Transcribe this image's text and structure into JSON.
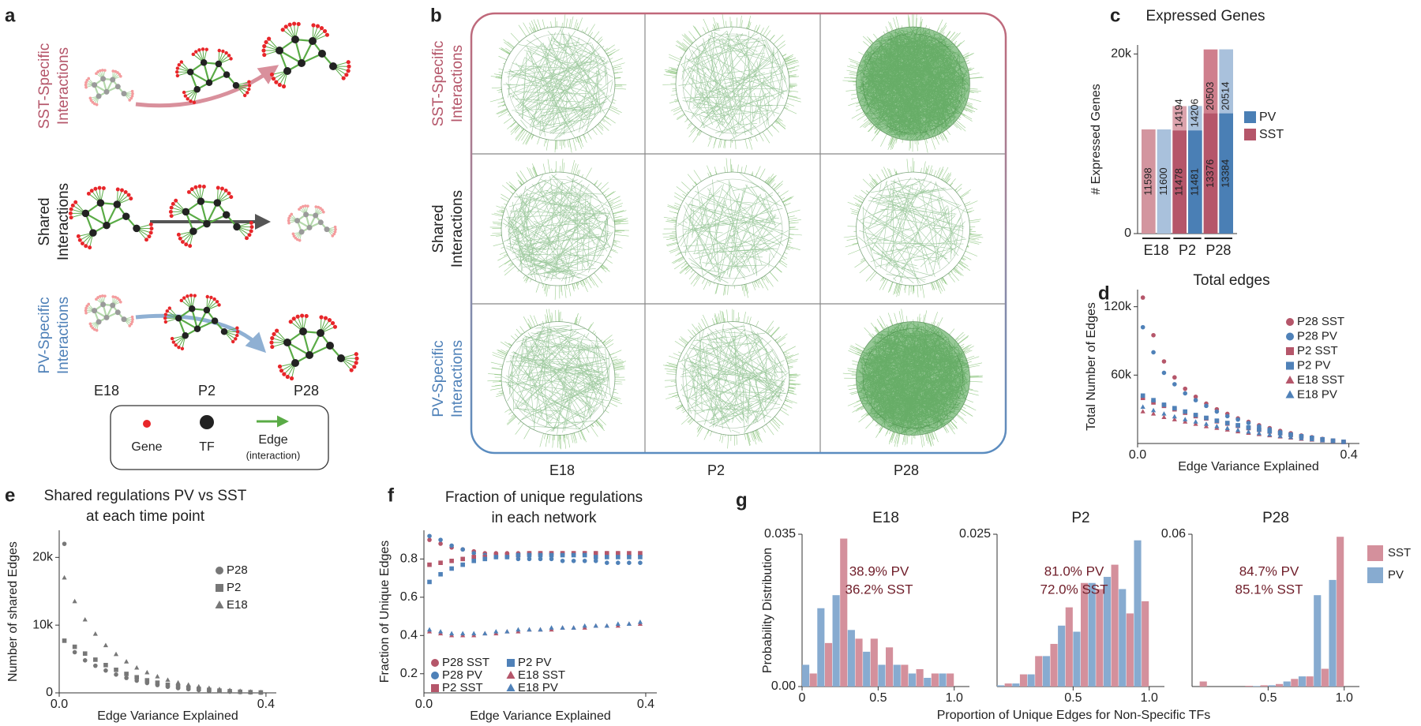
{
  "panels": {
    "a": {
      "letter": "a",
      "rows": [
        [
          "SST-Specific",
          "Interactions"
        ],
        [
          "Shared",
          "Interactions"
        ],
        [
          "PV-Specific",
          "Interactions"
        ]
      ],
      "timepoints": [
        "E18",
        "P2",
        "P28"
      ],
      "legend": {
        "gene": "Gene",
        "tf": "TF",
        "edge": "Edge",
        "edge_note": "(interaction)"
      }
    },
    "b": {
      "letter": "b",
      "rows": [
        [
          "SST-Specific",
          "Interactions"
        ],
        [
          "Shared",
          "Interactions"
        ],
        [
          "PV-Specific",
          "Interactions"
        ]
      ],
      "columns": [
        "E18",
        "P2",
        "P28"
      ]
    },
    "g": {
      "letter": "g",
      "xlabel": "Proportion of Unique Edges for Non-Specific TFs"
    }
  },
  "chart_data": [
    {
      "type": "bar",
      "letter": "c",
      "title": "Expressed Genes",
      "ylabel": "# Expressed Genes",
      "groups": [
        "E18",
        "P2",
        "P28"
      ],
      "series": [
        {
          "values": [
            11598,
            11600,
            14194,
            14206,
            20503,
            20514
          ],
          "colors": [
            "#d3959f",
            "#a9c1dc",
            "#dca3ad",
            "#a9c1dc",
            "#cf7f8d",
            "#a9c1dc"
          ]
        },
        {
          "values": [
            null,
            null,
            11478,
            11481,
            13376,
            13384
          ],
          "colors": [
            "#b5566a",
            "#4a7fb5",
            "#b5566a",
            "#4a7fb5",
            "#b5566a",
            "#4a7fb5"
          ]
        }
      ],
      "legend": [
        {
          "name": "PV",
          "color": "#4a7fb5"
        },
        {
          "name": "SST",
          "color": "#b5566a"
        }
      ],
      "ylim": [
        0,
        21000
      ],
      "yticks": [
        0,
        {
          "value": 20000,
          "label": "20k"
        }
      ]
    },
    {
      "type": "scatter",
      "letter": "d",
      "title": "Total edges",
      "xlabel": "Edge Variance Explained",
      "ylabel": "Total Number of Edges",
      "x": [
        0.01,
        0.03,
        0.05,
        0.07,
        0.09,
        0.11,
        0.13,
        0.15,
        0.17,
        0.19,
        0.21,
        0.23,
        0.25,
        0.27,
        0.29,
        0.31,
        0.33,
        0.35,
        0.37,
        0.39
      ],
      "series": [
        {
          "name": "P28 SST",
          "color": "#b5566a",
          "marker": "circle",
          "values": [
            128000,
            95000,
            72000,
            58000,
            48000,
            41000,
            35000,
            30000,
            26000,
            22000,
            19000,
            16000,
            13500,
            11000,
            9000,
            7000,
            5500,
            4000,
            2500,
            1500
          ]
        },
        {
          "name": "P28 PV",
          "color": "#4f81b8",
          "marker": "circle",
          "values": [
            102000,
            80000,
            62000,
            52000,
            44000,
            38000,
            33000,
            28000,
            24000,
            21000,
            18000,
            15000,
            12500,
            10000,
            8000,
            6500,
            5000,
            3500,
            2300,
            1300
          ]
        },
        {
          "name": "P2 SST",
          "color": "#b5566a",
          "marker": "square",
          "values": [
            40000,
            36000,
            33000,
            30000,
            27000,
            24000,
            22000,
            19500,
            17500,
            15500,
            13500,
            12000,
            10500,
            9000,
            7500,
            6000,
            4800,
            3600,
            2400,
            1400
          ]
        },
        {
          "name": "P2 PV",
          "color": "#4f81b8",
          "marker": "square",
          "values": [
            42000,
            38000,
            34000,
            31000,
            28000,
            25000,
            22500,
            20000,
            18000,
            16000,
            14000,
            12300,
            10800,
            9200,
            7800,
            6300,
            5000,
            3700,
            2500,
            1500
          ]
        },
        {
          "name": "E18 SST",
          "color": "#b5566a",
          "marker": "triangle",
          "values": [
            28000,
            26000,
            23000,
            21000,
            19000,
            17000,
            15000,
            13500,
            12000,
            10500,
            9200,
            8000,
            7000,
            6000,
            5000,
            4000,
            3200,
            2400,
            1600,
            900
          ]
        },
        {
          "name": "E18 PV",
          "color": "#4f81b8",
          "marker": "triangle",
          "values": [
            32000,
            29000,
            26000,
            23500,
            21000,
            19000,
            17000,
            15000,
            13300,
            11700,
            10200,
            8900,
            7700,
            6600,
            5500,
            4500,
            3500,
            2600,
            1800,
            1000
          ]
        }
      ],
      "xlim": [
        0,
        0.42
      ],
      "xticks": [
        {
          "value": 0,
          "label": "0.0"
        },
        0.4
      ],
      "ylim": [
        0,
        135000
      ],
      "yticks": [
        {
          "value": 60000,
          "label": "60k"
        },
        {
          "value": 120000,
          "label": "120k"
        }
      ],
      "legend": "right"
    },
    {
      "type": "scatter",
      "letter": "e",
      "title": [
        "Shared regulations PV vs SST",
        "at each time point"
      ],
      "xlabel": "Edge Variance Explained",
      "ylabel": "Number of shared Edges",
      "x": [
        0.01,
        0.03,
        0.05,
        0.07,
        0.09,
        0.11,
        0.13,
        0.15,
        0.17,
        0.19,
        0.21,
        0.23,
        0.25,
        0.27,
        0.29,
        0.31,
        0.33,
        0.35,
        0.37,
        0.39
      ],
      "series": [
        {
          "name": "P28",
          "color": "#777777",
          "marker": "circle",
          "values": [
            22000,
            6000,
            4800,
            4000,
            3300,
            2700,
            2200,
            1800,
            1450,
            1150,
            900,
            700,
            550,
            420,
            320,
            240,
            170,
            110,
            70,
            40
          ]
        },
        {
          "name": "P2",
          "color": "#777777",
          "marker": "square",
          "values": [
            7700,
            6800,
            5800,
            4900,
            4100,
            3400,
            2800,
            2300,
            1850,
            1500,
            1200,
            950,
            750,
            580,
            440,
            330,
            240,
            160,
            100,
            60
          ]
        },
        {
          "name": "E18",
          "color": "#777777",
          "marker": "triangle",
          "values": [
            17000,
            13500,
            10800,
            8700,
            7000,
            5700,
            4600,
            3700,
            3000,
            2400,
            1900,
            1500,
            1180,
            920,
            700,
            520,
            380,
            260,
            160,
            90
          ]
        }
      ],
      "xlim": [
        0,
        0.42
      ],
      "xticks": [
        {
          "value": 0,
          "label": "0.0"
        },
        0.4
      ],
      "ylim": [
        0,
        24000
      ],
      "yticks": [
        0,
        {
          "value": 10000,
          "label": "10k"
        },
        {
          "value": 20000,
          "label": "20k"
        }
      ],
      "legend": "right"
    },
    {
      "type": "scatter",
      "letter": "f",
      "title": [
        "Fraction of unique regulations",
        "in each network"
      ],
      "xlabel": "Edge Variance Explained",
      "ylabel": "Fraction of Unique Edges",
      "x": [
        0.01,
        0.03,
        0.05,
        0.07,
        0.09,
        0.11,
        0.13,
        0.15,
        0.17,
        0.19,
        0.21,
        0.23,
        0.25,
        0.27,
        0.29,
        0.31,
        0.33,
        0.35,
        0.37,
        0.39
      ],
      "series": [
        {
          "name": "P28 SST",
          "color": "#b5566a",
          "marker": "circle",
          "values": [
            0.9,
            0.88,
            0.86,
            0.85,
            0.84,
            0.83,
            0.83,
            0.83,
            0.83,
            0.83,
            0.83,
            0.83,
            0.83,
            0.83,
            0.83,
            0.83,
            0.83,
            0.83,
            0.82,
            0.82
          ]
        },
        {
          "name": "P28 PV",
          "color": "#4f81b8",
          "marker": "circle",
          "values": [
            0.92,
            0.9,
            0.87,
            0.85,
            0.83,
            0.82,
            0.81,
            0.81,
            0.8,
            0.8,
            0.8,
            0.8,
            0.79,
            0.79,
            0.79,
            0.79,
            0.78,
            0.78,
            0.78,
            0.78
          ]
        },
        {
          "name": "P2 SST",
          "color": "#b5566a",
          "marker": "square",
          "values": [
            0.77,
            0.78,
            0.79,
            0.8,
            0.81,
            0.81,
            0.82,
            0.82,
            0.82,
            0.83,
            0.83,
            0.83,
            0.83,
            0.83,
            0.83,
            0.83,
            0.83,
            0.83,
            0.83,
            0.83
          ]
        },
        {
          "name": "P2 PV",
          "color": "#4f81b8",
          "marker": "square",
          "values": [
            0.68,
            0.72,
            0.75,
            0.77,
            0.79,
            0.8,
            0.81,
            0.81,
            0.82,
            0.82,
            0.82,
            0.82,
            0.82,
            0.82,
            0.82,
            0.81,
            0.81,
            0.81,
            0.81,
            0.81
          ]
        },
        {
          "name": "E18 SST",
          "color": "#b5566a",
          "marker": "triangle",
          "values": [
            0.42,
            0.41,
            0.4,
            0.4,
            0.4,
            0.41,
            0.41,
            0.42,
            0.42,
            0.43,
            0.43,
            0.43,
            0.44,
            0.44,
            0.44,
            0.45,
            0.45,
            0.45,
            0.46,
            0.46
          ]
        },
        {
          "name": "E18 PV",
          "color": "#4f81b8",
          "marker": "triangle",
          "values": [
            0.43,
            0.42,
            0.41,
            0.41,
            0.41,
            0.41,
            0.42,
            0.42,
            0.43,
            0.43,
            0.43,
            0.44,
            0.44,
            0.44,
            0.45,
            0.45,
            0.45,
            0.46,
            0.46,
            0.47
          ]
        }
      ],
      "xlim": [
        0,
        0.42
      ],
      "xticks": [
        {
          "value": 0,
          "label": "0.0"
        },
        0.4
      ],
      "ylim": [
        0.1,
        0.95
      ],
      "yticks": [
        0.2,
        0.4,
        0.6,
        0.8
      ],
      "legend": "bottom"
    },
    {
      "type": "histogram",
      "title": "E18",
      "ylabel": "Probability Distribution",
      "bins": [
        0,
        0.1,
        0.2,
        0.3,
        0.4,
        0.5,
        0.6,
        0.7,
        0.8,
        0.9,
        1.0
      ],
      "series": [
        {
          "name": "PV",
          "color": "#87abd0",
          "values": [
            0.005,
            0.018,
            0.021,
            0.013,
            0.008,
            0.005,
            0.005,
            0.003,
            0.002,
            0.003
          ]
        },
        {
          "name": "SST",
          "color": "#d4909c",
          "values": [
            0.003,
            0.01,
            0.034,
            0.011,
            0.011,
            0.009,
            0.005,
            0.004,
            0.003,
            0.003
          ]
        }
      ],
      "annotations": [
        "38.9% PV",
        "36.2% SST"
      ],
      "xlim": [
        0,
        1.1
      ],
      "xticks": [
        0,
        0.5,
        {
          "value": 1,
          "label": "1.0"
        }
      ],
      "ylim": [
        0,
        0.035
      ],
      "yticks": [
        {
          "value": 0,
          "label": "0.00"
        },
        0.035
      ]
    },
    {
      "type": "histogram",
      "title": "P2",
      "bins": [
        0,
        0.1,
        0.2,
        0.3,
        0.4,
        0.5,
        0.6,
        0.7,
        0.8,
        0.9,
        1.0
      ],
      "series": [
        {
          "name": "PV",
          "color": "#87abd0",
          "values": [
            0.0002,
            0.0005,
            0.002,
            0.005,
            0.01,
            0.009,
            0.017,
            0.018,
            0.016,
            0.024
          ]
        },
        {
          "name": "SST",
          "color": "#d4909c",
          "values": [
            0.0005,
            0.002,
            0.005,
            0.007,
            0.013,
            0.017,
            0.016,
            0.02,
            0.012,
            0.014
          ]
        }
      ],
      "annotations": [
        "81.0% PV",
        "72.0% SST"
      ],
      "xlim": [
        0,
        1.1
      ],
      "xticks": [
        0.5,
        {
          "value": 1,
          "label": "1.0"
        }
      ],
      "ylim": [
        0,
        0.025
      ],
      "yticks": [
        0.025
      ]
    },
    {
      "type": "histogram",
      "title": "P28",
      "bins": [
        0,
        0.1,
        0.2,
        0.3,
        0.4,
        0.5,
        0.6,
        0.7,
        0.8,
        0.9,
        1.0
      ],
      "series": [
        {
          "name": "PV",
          "color": "#87abd0",
          "values": [
            0,
            0,
            0,
            0,
            0.0002,
            0.0005,
            0.002,
            0.004,
            0.036,
            0.042
          ]
        },
        {
          "name": "SST",
          "color": "#d4909c",
          "values": [
            0.002,
            0,
            0,
            0.0003,
            0.0005,
            0.001,
            0.003,
            0.004,
            0.007,
            0.059
          ]
        }
      ],
      "annotations": [
        "84.7% PV",
        "85.1% SST"
      ],
      "xlim": [
        0,
        1.1
      ],
      "xticks": [
        0.5,
        {
          "value": 1,
          "label": "1.0"
        }
      ],
      "ylim": [
        0,
        0.06
      ],
      "yticks": [
        0.06
      ],
      "legend": "outside-right"
    }
  ]
}
